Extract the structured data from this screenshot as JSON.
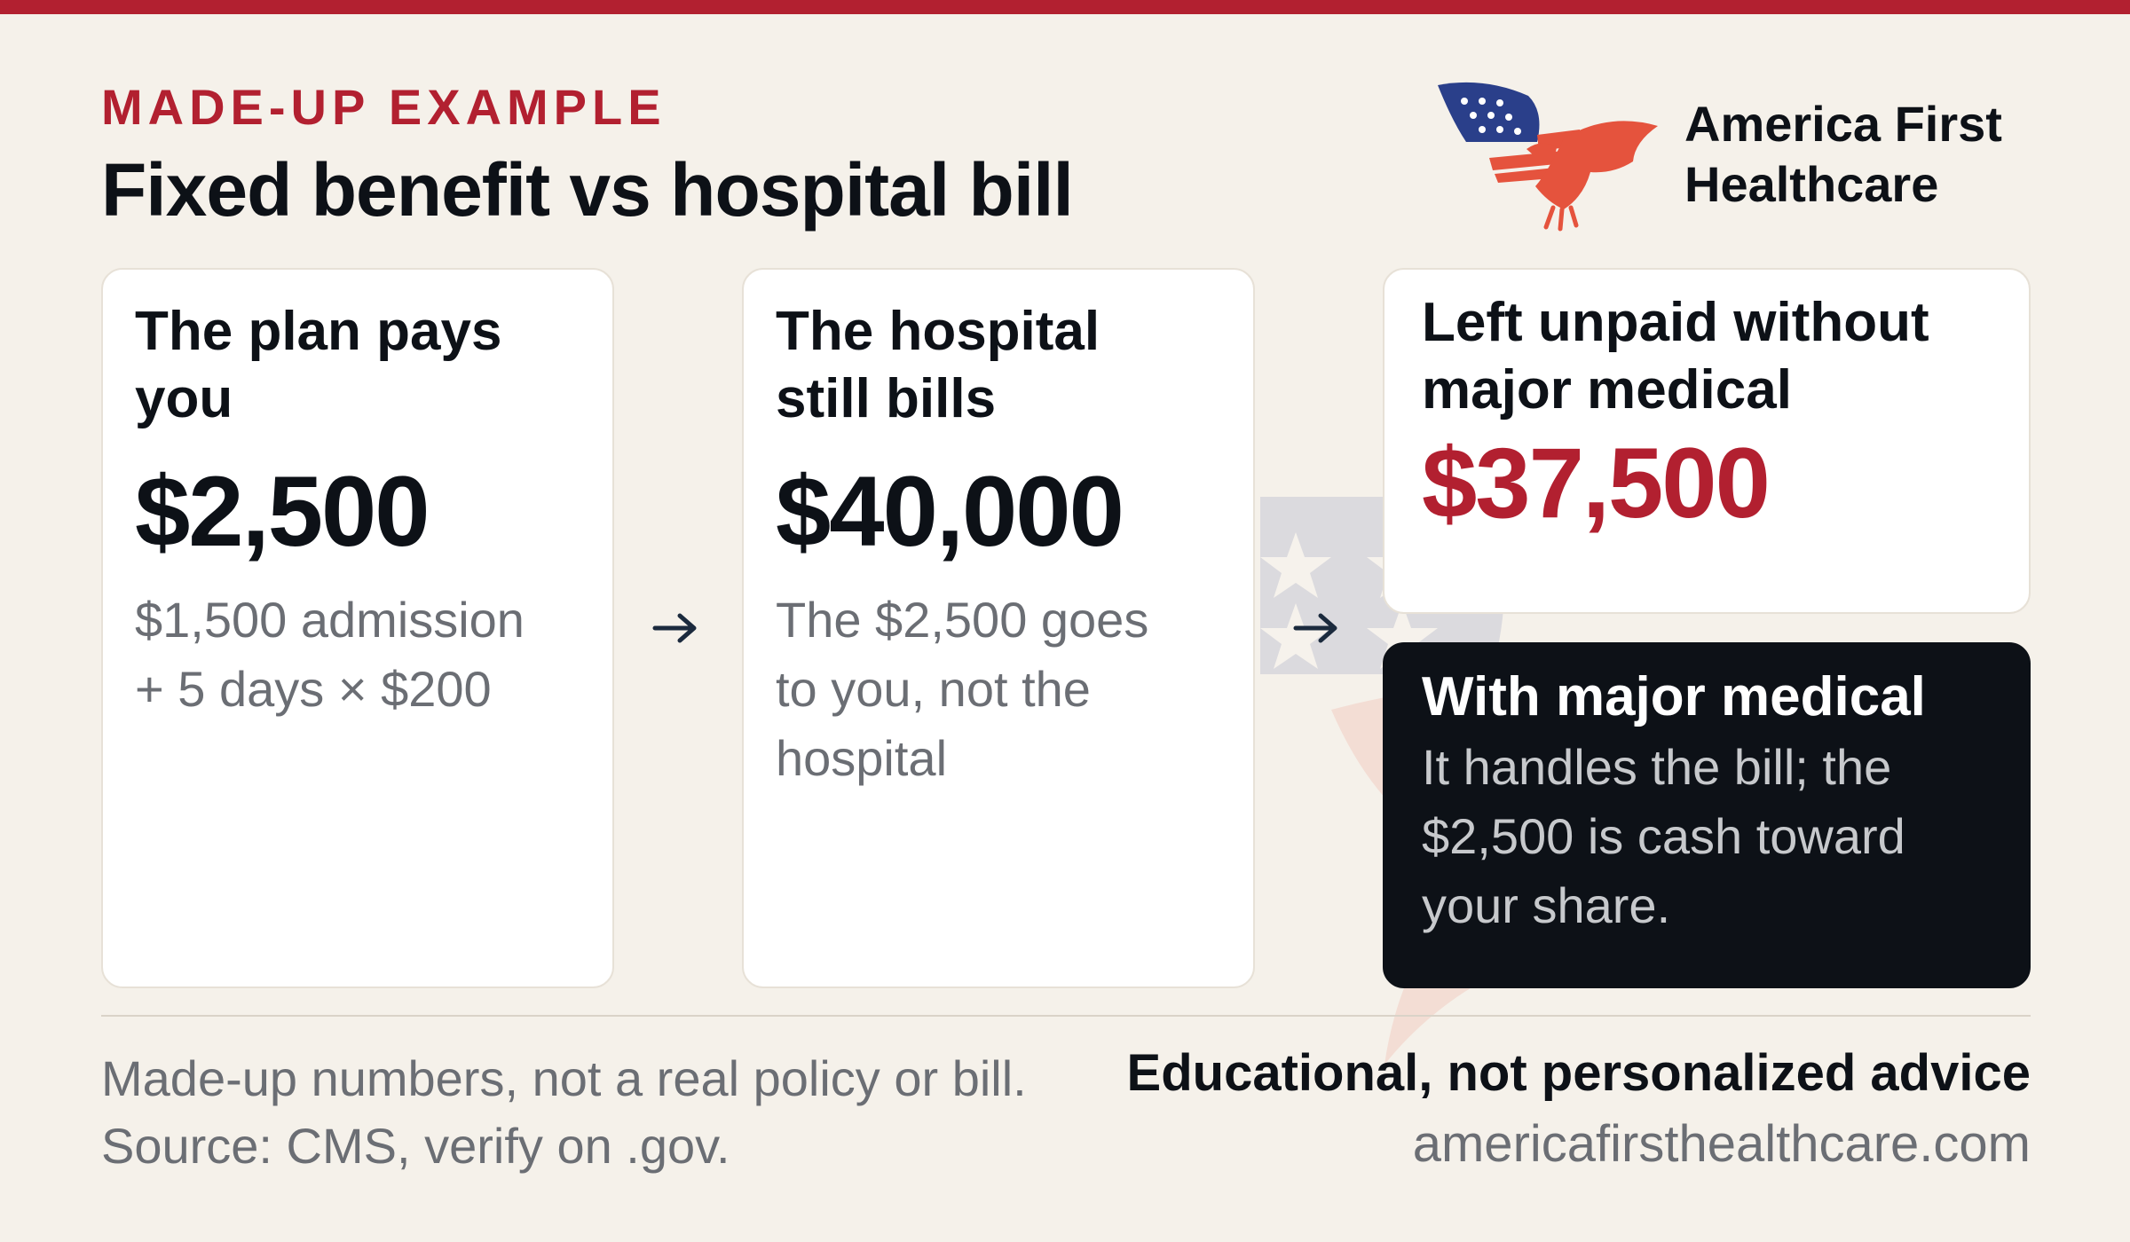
{
  "header": {
    "kicker": "MADE-UP EXAMPLE",
    "title": "Fixed benefit vs hospital bill"
  },
  "brand": {
    "name_line1": "America First",
    "name_line2": "Healthcare",
    "logo_icon": "eagle-flag-icon"
  },
  "cards": {
    "plan_pays": {
      "title": "The plan pays you",
      "amount": "$2,500",
      "note": "$1,500 admission + 5 days × $200"
    },
    "hospital_bills": {
      "title": "The hospital still bills",
      "amount": "$40,000",
      "note": "The $2,500 goes to you, not the hospital"
    },
    "left_unpaid": {
      "title": "Left unpaid without major medical",
      "amount": "$37,500"
    },
    "with_major_medical": {
      "title": "With major medical",
      "note": "It handles the bill; the $2,500 is cash toward your share."
    }
  },
  "footer": {
    "disclaimer_line1": "Made-up numbers, not a real policy or bill.",
    "disclaimer_line2": "Source: CMS, verify on .gov.",
    "advice": "Educational, not personalized advice",
    "website": "americafirsthealthcare.com"
  },
  "colors": {
    "accent_red": "#b22030",
    "ink": "#0d1117",
    "muted": "#6b6e74",
    "background": "#f5f1ea",
    "logo_blue": "#2a3f8a",
    "logo_orange": "#e5533d"
  }
}
